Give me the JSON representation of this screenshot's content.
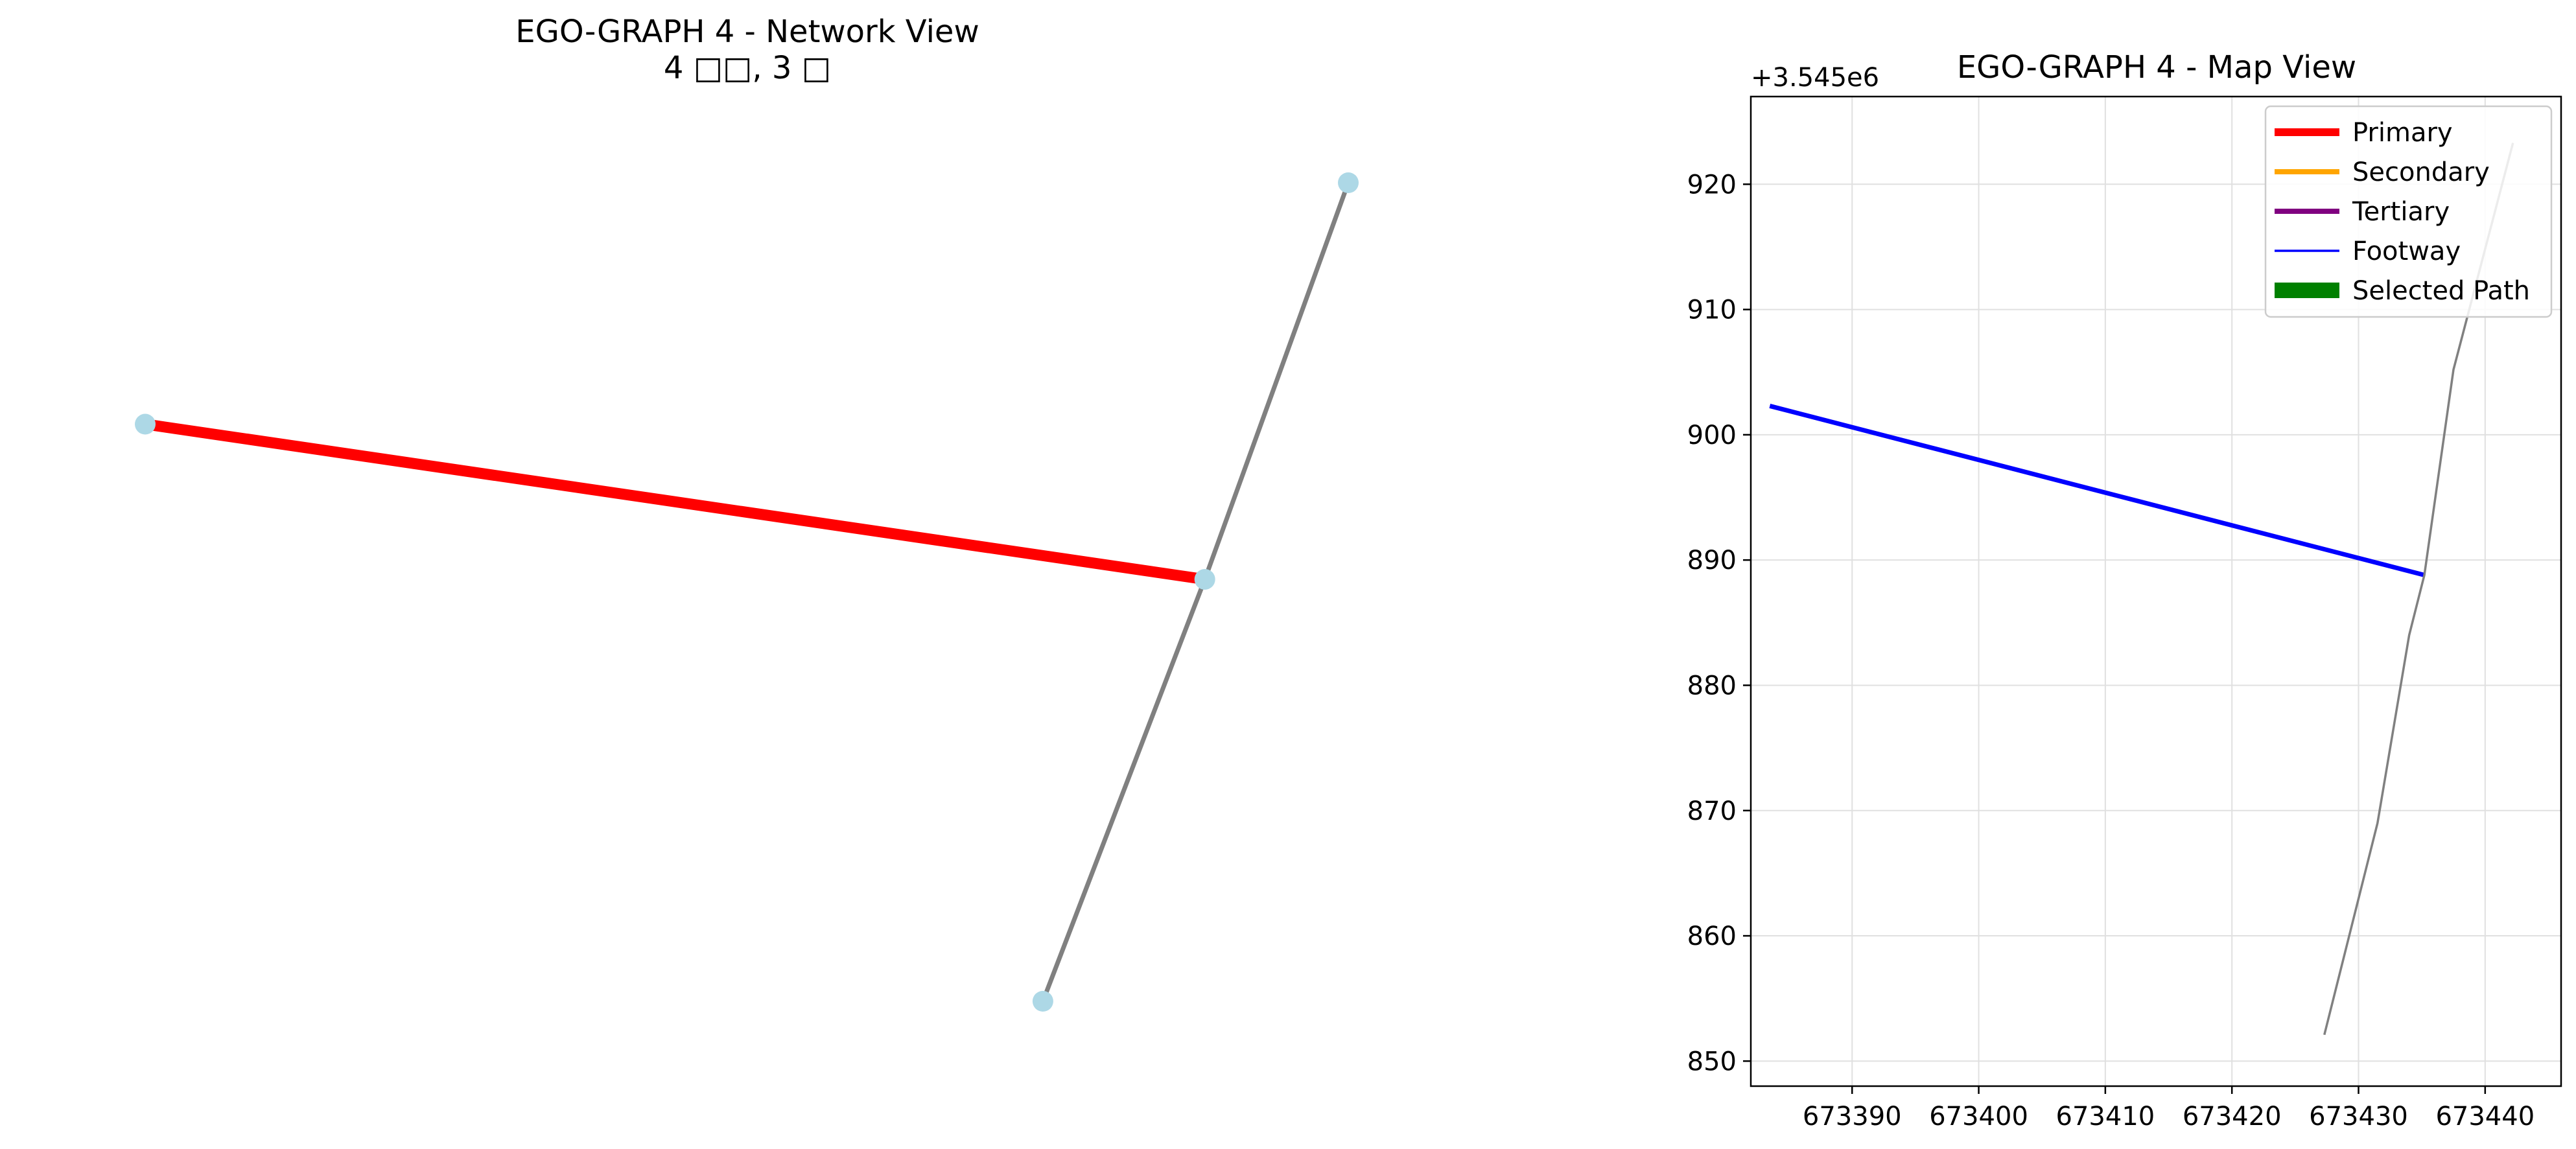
{
  "colors": {
    "node": "#add8e6",
    "edge_default": "#808080",
    "primary": "#ff0000",
    "secondary": "#ffa500",
    "tertiary": "#800080",
    "footway": "#0000ff",
    "selected_path": "#008000",
    "grid": "#e0e0e0"
  },
  "chart_data": [
    {
      "type": "network",
      "title_line1": "EGO-GRAPH 4 - Network View",
      "title_line2": "4 □□, 3 □",
      "axes_visible": false,
      "nodes": [
        {
          "id": 0,
          "x": 673383.5,
          "y": 3545902.3
        },
        {
          "id": 1,
          "x": 673435.2,
          "y": 3545888.8
        },
        {
          "id": 2,
          "x": 673442.2,
          "y": 3545923.3
        },
        {
          "id": 3,
          "x": 673427.3,
          "y": 3545852.1
        }
      ],
      "edges": [
        {
          "source": 0,
          "target": 1,
          "color_key": "primary",
          "highlighted": true
        },
        {
          "source": 1,
          "target": 2,
          "color_key": "edge_default",
          "highlighted": false
        },
        {
          "source": 1,
          "target": 3,
          "color_key": "edge_default",
          "highlighted": false
        }
      ]
    },
    {
      "type": "line",
      "title": "EGO-GRAPH 4 - Map View",
      "y_offset_text": "+3.545e6",
      "xlim": [
        673382,
        673446
      ],
      "ylim": [
        848,
        927
      ],
      "xticks": [
        673390,
        673400,
        673410,
        673420,
        673430,
        673440
      ],
      "yticks": [
        850,
        860,
        870,
        880,
        890,
        900,
        910,
        920
      ],
      "grid": true,
      "legend_position": "top-right",
      "legend": [
        {
          "label": "Primary",
          "color_key": "primary",
          "style": "thick"
        },
        {
          "label": "Secondary",
          "color_key": "secondary",
          "style": "medium"
        },
        {
          "label": "Tertiary",
          "color_key": "tertiary",
          "style": "medium"
        },
        {
          "label": "Footway",
          "color_key": "footway",
          "style": "thin"
        },
        {
          "label": "Selected Path",
          "color_key": "selected_path",
          "style": "bar"
        }
      ],
      "series": [
        {
          "color_key": "footway",
          "width": "medium",
          "points": [
            [
              673383.5,
              902.3
            ],
            [
              673435.2,
              888.8
            ]
          ]
        },
        {
          "color_key": "edge_default",
          "width": "thin",
          "points": [
            [
              673427.3,
              852.1
            ],
            [
              673431.5,
              869
            ],
            [
              673434.0,
              884
            ],
            [
              673435.2,
              888.8
            ],
            [
              673437.5,
              905.2
            ],
            [
              673442.2,
              923.3
            ]
          ]
        }
      ]
    }
  ]
}
